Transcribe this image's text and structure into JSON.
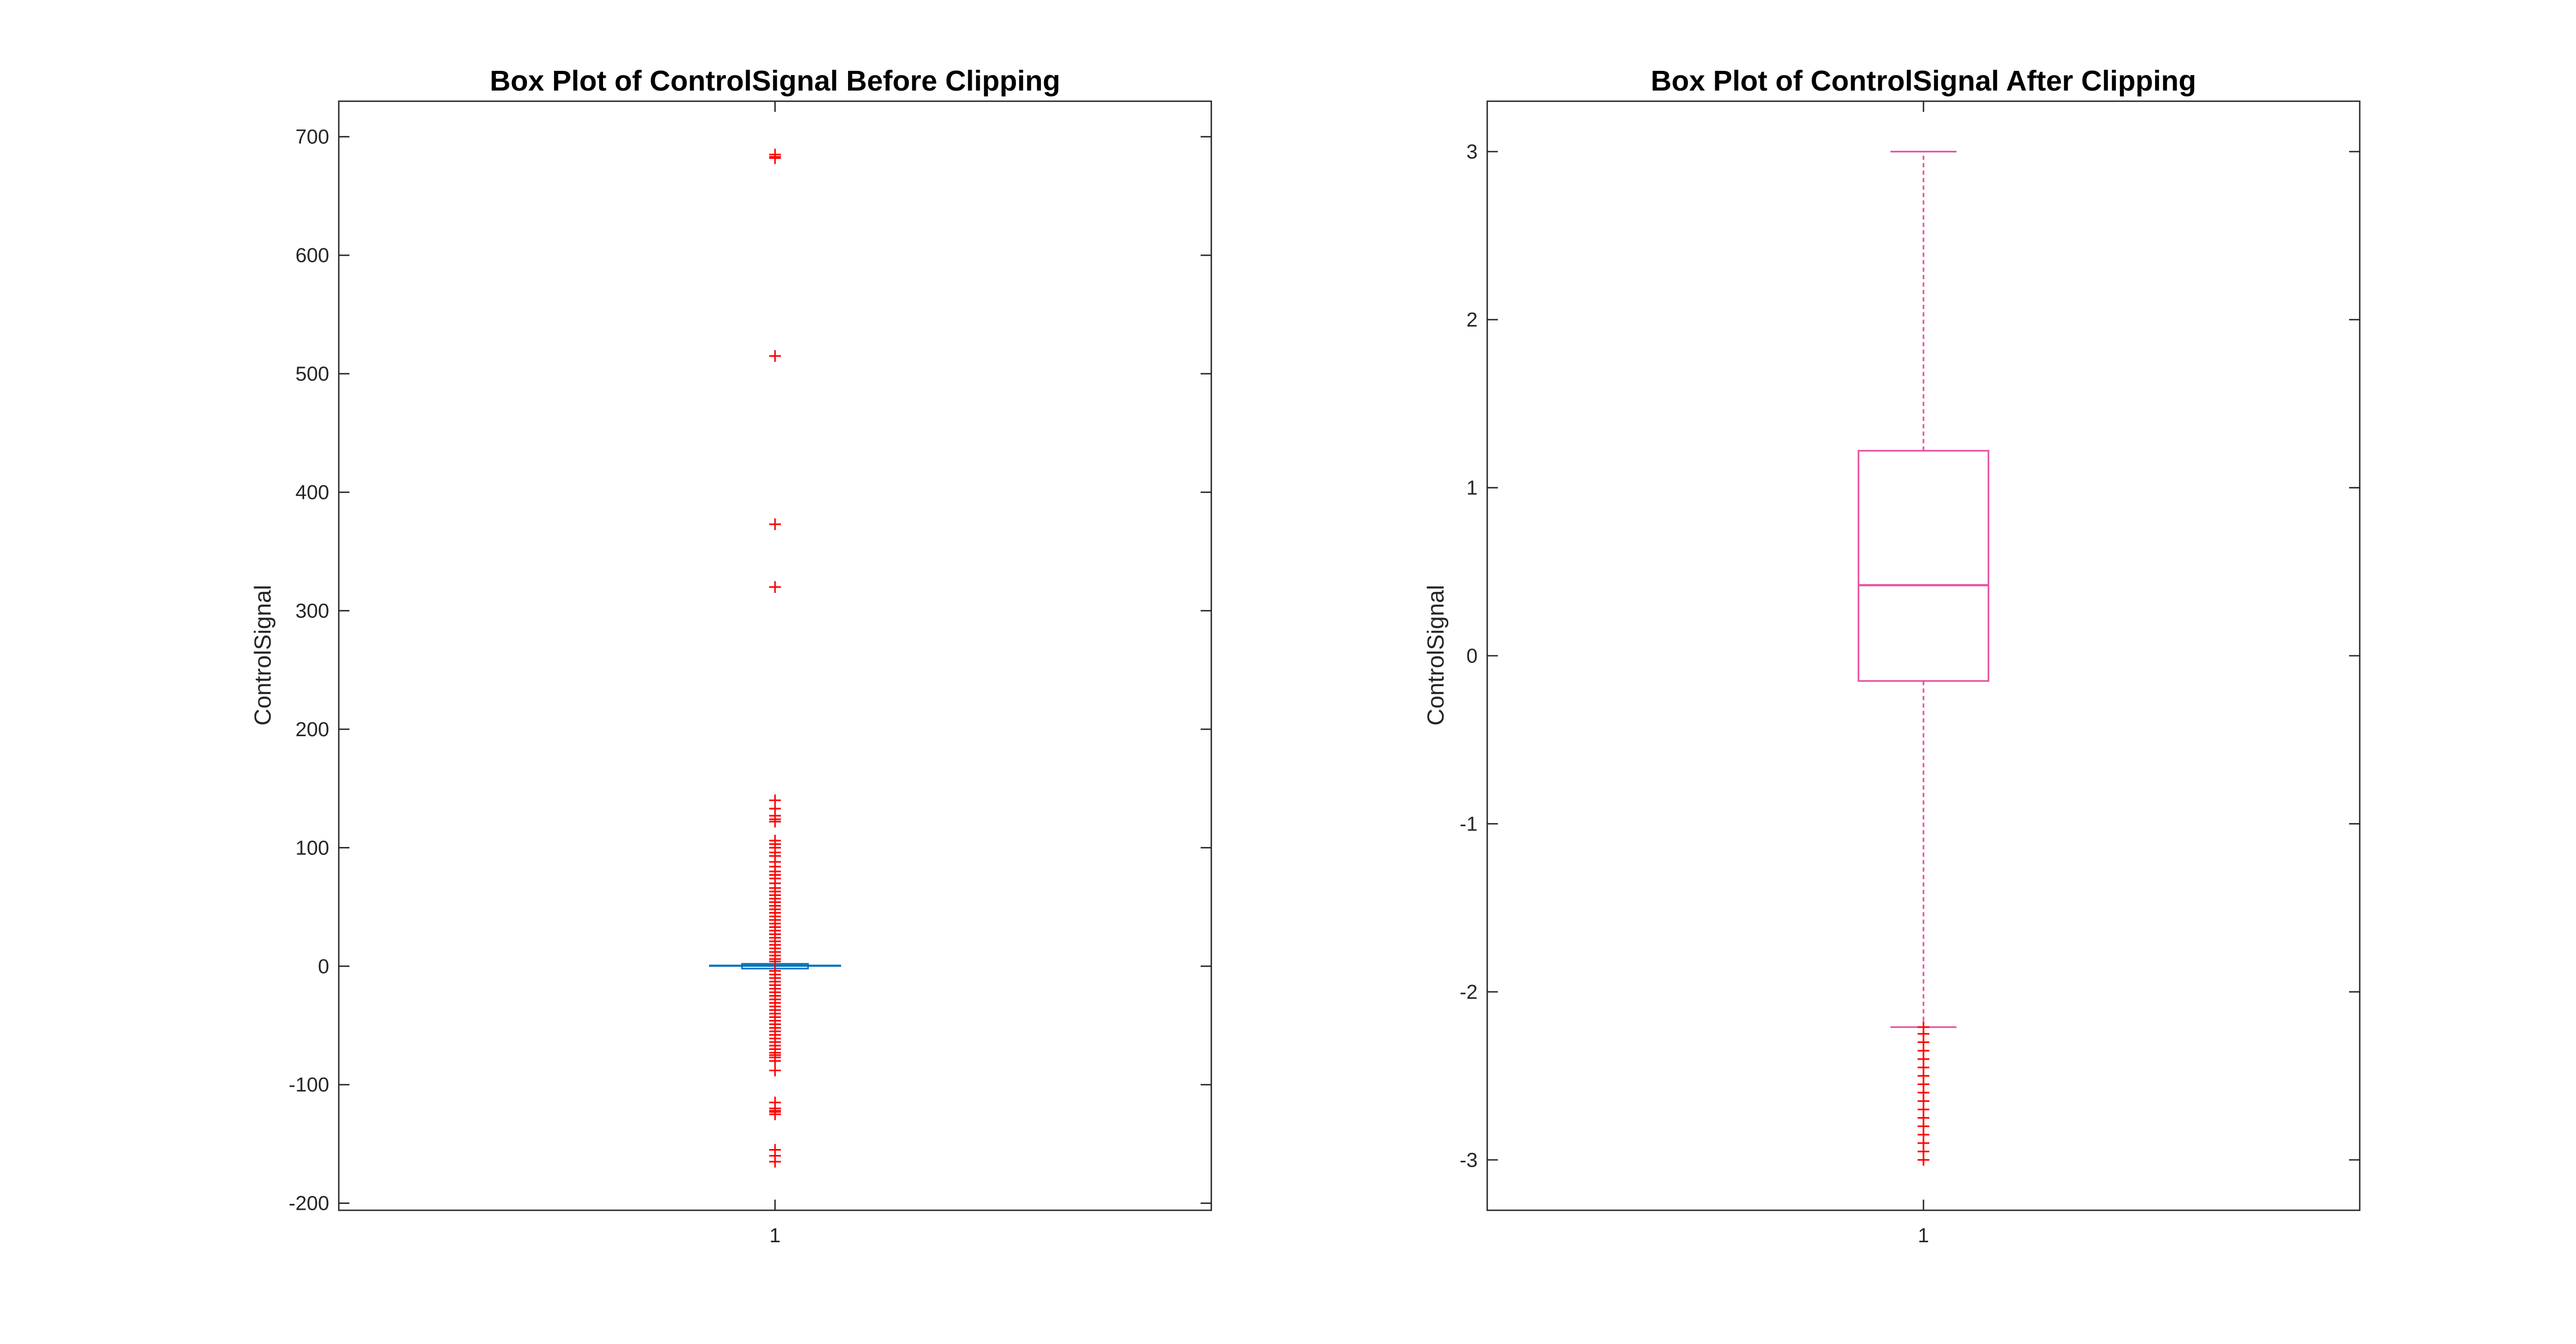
{
  "chart_data": [
    {
      "type": "box",
      "title": "Box Plot of ControlSignal Before Clipping",
      "xlabel": "",
      "ylabel": "ControlSignal",
      "categories": [
        "1"
      ],
      "ylim": [
        -206,
        730
      ],
      "yticks": [
        -200,
        -100,
        0,
        100,
        200,
        300,
        400,
        500,
        600,
        700
      ],
      "grid": false,
      "colors": {
        "box": "#0072BD",
        "median": "#0072BD",
        "whisker": "#0072BD",
        "outlier": "#FF0000"
      },
      "box": {
        "q1": -2,
        "median": 0.4,
        "q3": 2,
        "whisker_low": -2.5,
        "whisker_high": 3
      },
      "outliers": [
        685,
        683,
        682,
        515,
        373,
        320,
        140,
        133,
        127,
        124,
        122,
        106,
        103,
        100,
        96,
        93,
        88,
        84,
        80,
        77,
        74,
        70,
        66,
        63,
        60,
        57,
        54,
        51,
        48,
        45,
        42,
        39,
        36,
        33,
        30,
        27,
        24,
        21,
        18,
        15,
        12,
        9,
        6,
        4,
        -4,
        -7,
        -10,
        -13,
        -16,
        -19,
        -22,
        -25,
        -28,
        -31,
        -34,
        -37,
        -40,
        -43,
        -46,
        -49,
        -52,
        -55,
        -58,
        -61,
        -64,
        -67,
        -70,
        -73,
        -75,
        -77,
        -80,
        -88,
        -115,
        -120,
        -122,
        -123,
        -125,
        -155,
        -160,
        -165
      ]
    },
    {
      "type": "box",
      "title": "Box Plot of ControlSignal After Clipping",
      "xlabel": "",
      "ylabel": "ControlSignal",
      "categories": [
        "1"
      ],
      "ylim": [
        -3.3,
        3.3
      ],
      "yticks": [
        -3,
        -2,
        -1,
        0,
        1,
        2,
        3
      ],
      "grid": false,
      "colors": {
        "box": "#E84C9E",
        "median": "#E84C9E",
        "whisker": "#E84C9E",
        "outlier": "#FF0000"
      },
      "box": {
        "q1": -0.15,
        "median": 0.42,
        "q3": 1.22,
        "whisker_low": -2.21,
        "whisker_high": 3.0
      },
      "outliers": [
        -2.21,
        -2.25,
        -2.3,
        -2.35,
        -2.4,
        -2.45,
        -2.5,
        -2.55,
        -2.6,
        -2.65,
        -2.7,
        -2.75,
        -2.8,
        -2.85,
        -2.9,
        -2.95,
        -3.0
      ]
    }
  ]
}
